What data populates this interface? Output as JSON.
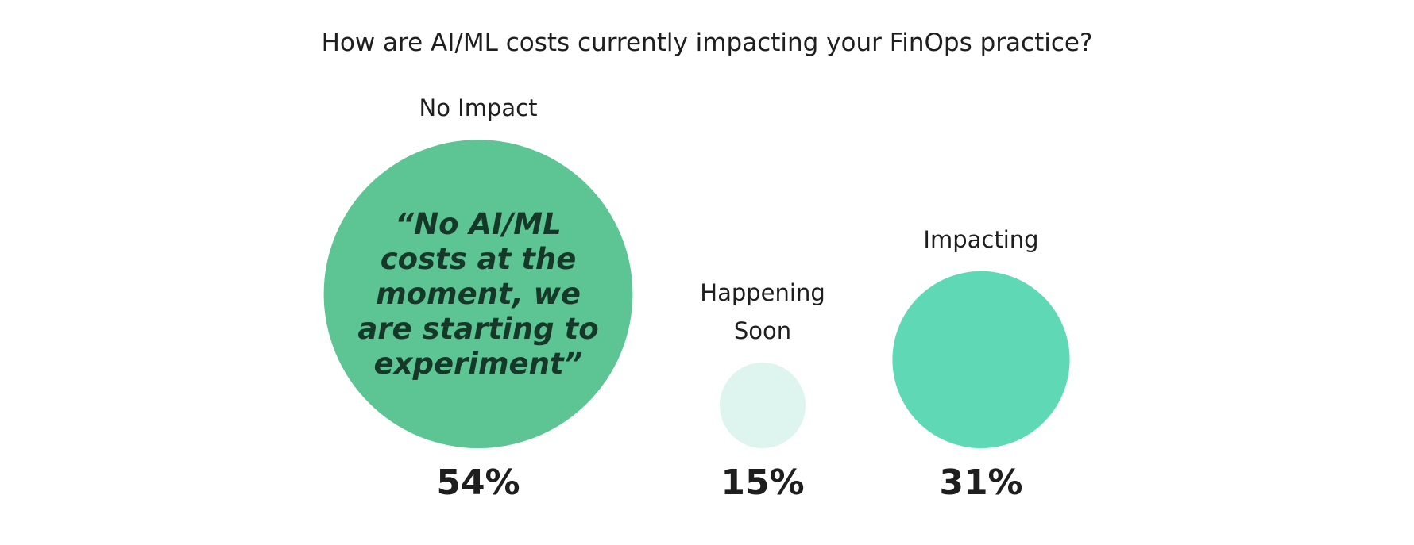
{
  "chart_data": {
    "type": "bubble",
    "title": "How are AI/ML costs currently impacting your FinOps practice?",
    "categories": [
      "No Impact",
      "Happening Soon",
      "Impacting"
    ],
    "values": [
      54,
      15,
      31
    ],
    "value_labels": [
      "54%",
      "15%",
      "31%"
    ],
    "colors": [
      "#5cc593",
      "#ddf5ee",
      "#5fd9b5"
    ],
    "annotation": "“No AI/ML costs at the moment, we are starting to experiment”"
  }
}
